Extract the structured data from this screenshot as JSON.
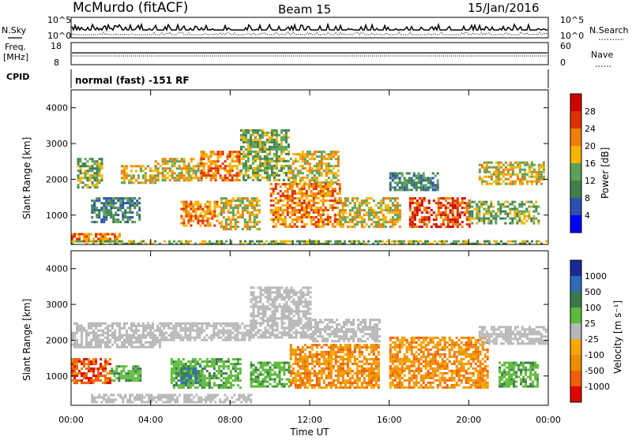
{
  "header": {
    "station": "McMurdo (fitACF)",
    "beam": "Beam 15",
    "date": "15/Jan/2016"
  },
  "noise_panel": {
    "left_label": "N.Sky",
    "right_label": "N.Search",
    "left_ticks": [
      "10^5",
      "10^0"
    ],
    "right_ticks": [
      "10^5",
      "10^0"
    ]
  },
  "freq_panel": {
    "left_label_line1": "Freq.",
    "left_label_line2": "[MHz]",
    "right_label": "Nave",
    "left_ticks": [
      "18",
      "8"
    ],
    "right_ticks": [
      "60",
      "0"
    ]
  },
  "cpid_panel": {
    "label": "CPID",
    "text": "normal (fast) -151 RF"
  },
  "colors": {
    "power": [
      "#0000ff",
      "#2c4fb0",
      "#3f7f4e",
      "#5aa25a",
      "#f4b400",
      "#f08000",
      "#e03000",
      "#d00000"
    ],
    "velocity_pos": [
      "#1a2a99",
      "#2e6db8",
      "#3a7a4a",
      "#5dbb3a"
    ],
    "velocity_neg": [
      "#f7a800",
      "#f08c00",
      "#f06000",
      "#e00000"
    ],
    "ground": "#b8b8b8"
  },
  "chart_data": [
    {
      "type": "heatmap",
      "name": "power",
      "ylabel": "Slant Range [km]",
      "ylim": [
        180,
        4500
      ],
      "yticks": [
        "1000",
        "2000",
        "3000",
        "4000"
      ],
      "colorbar_label": "Power [dB]",
      "colorbar_ticks": [
        "4",
        "8",
        "12",
        "16",
        "20",
        "24",
        "28"
      ],
      "bands": [
        {
          "t": [
            0,
            2.5
          ],
          "r": [
            250,
            500
          ],
          "level": 5
        },
        {
          "t": [
            0,
            24
          ],
          "r": [
            200,
            300
          ],
          "level": 3
        },
        {
          "t": [
            1.0,
            3.5
          ],
          "r": [
            800,
            1500
          ],
          "level": 2
        },
        {
          "t": [
            0.3,
            1.5
          ],
          "r": [
            1800,
            2600
          ],
          "level": 3
        },
        {
          "t": [
            2.5,
            4.2
          ],
          "r": [
            1900,
            2400
          ],
          "level": 4
        },
        {
          "t": [
            4.2,
            6.5
          ],
          "r": [
            2000,
            2600
          ],
          "level": 4
        },
        {
          "t": [
            6.5,
            8.5
          ],
          "r": [
            2000,
            2800
          ],
          "level": 5
        },
        {
          "t": [
            8.5,
            11.0
          ],
          "r": [
            2000,
            3400
          ],
          "level": 3
        },
        {
          "t": [
            11.0,
            13.5
          ],
          "r": [
            1900,
            2800
          ],
          "level": 4
        },
        {
          "t": [
            5.5,
            7.5
          ],
          "r": [
            700,
            1400
          ],
          "level": 5
        },
        {
          "t": [
            7.5,
            9.5
          ],
          "r": [
            600,
            1500
          ],
          "level": 4
        },
        {
          "t": [
            10.0,
            13.5
          ],
          "r": [
            700,
            1900
          ],
          "level": 5
        },
        {
          "t": [
            13.5,
            16.5
          ],
          "r": [
            700,
            1500
          ],
          "level": 4
        },
        {
          "t": [
            17.0,
            20.0
          ],
          "r": [
            700,
            1500
          ],
          "level": 6
        },
        {
          "t": [
            20.0,
            23.5
          ],
          "r": [
            800,
            1400
          ],
          "level": 3
        },
        {
          "t": [
            20.5,
            23.8
          ],
          "r": [
            1900,
            2500
          ],
          "level": 4
        },
        {
          "t": [
            16.0,
            18.5
          ],
          "r": [
            1700,
            2200
          ],
          "level": 2
        }
      ]
    },
    {
      "type": "heatmap",
      "name": "velocity",
      "ylabel": "Slant Range [km]",
      "ylim": [
        180,
        4500
      ],
      "yticks": [
        "1000",
        "2000",
        "3000",
        "4000"
      ],
      "xlabel": "Time UT",
      "xlim": [
        0,
        24
      ],
      "xticks": [
        "00:00",
        "04:00",
        "08:00",
        "12:00",
        "16:00",
        "20:00",
        "00:00"
      ],
      "colorbar_label": "Velocity [m s⁻¹]",
      "colorbar_ticks": [
        "1000",
        "500",
        "100",
        "25",
        "-25",
        "-100",
        "-500",
        "-1000"
      ],
      "bands": [
        {
          "t": [
            0,
            2.0
          ],
          "r": [
            800,
            1500
          ],
          "kind": "neg",
          "level": 2
        },
        {
          "t": [
            2.0,
            3.5
          ],
          "r": [
            900,
            1300
          ],
          "kind": "pos",
          "level": 3
        },
        {
          "t": [
            5.0,
            8.5
          ],
          "r": [
            700,
            1500
          ],
          "kind": "pos",
          "level": 3
        },
        {
          "t": [
            5.5,
            6.5
          ],
          "r": [
            800,
            1300
          ],
          "kind": "pos",
          "level": 2
        },
        {
          "t": [
            9.0,
            11.0
          ],
          "r": [
            700,
            1400
          ],
          "kind": "pos",
          "level": 3
        },
        {
          "t": [
            11.0,
            15.5
          ],
          "r": [
            700,
            1900
          ],
          "kind": "neg",
          "level": 1
        },
        {
          "t": [
            16.0,
            21.0
          ],
          "r": [
            700,
            2100
          ],
          "kind": "neg",
          "level": 1
        },
        {
          "t": [
            21.5,
            23.5
          ],
          "r": [
            700,
            1400
          ],
          "kind": "pos",
          "level": 3
        },
        {
          "t": [
            0,
            4.5
          ],
          "r": [
            1800,
            2500
          ],
          "kind": "ground"
        },
        {
          "t": [
            4.5,
            9.0
          ],
          "r": [
            2000,
            2500
          ],
          "kind": "ground"
        },
        {
          "t": [
            9.0,
            12.0
          ],
          "r": [
            2100,
            3500
          ],
          "kind": "ground"
        },
        {
          "t": [
            12.0,
            15.5
          ],
          "r": [
            2000,
            2600
          ],
          "kind": "ground"
        },
        {
          "t": [
            20.5,
            23.9
          ],
          "r": [
            1900,
            2400
          ],
          "kind": "ground"
        },
        {
          "t": [
            1.0,
            9.0
          ],
          "r": [
            250,
            500
          ],
          "kind": "ground"
        }
      ]
    }
  ]
}
